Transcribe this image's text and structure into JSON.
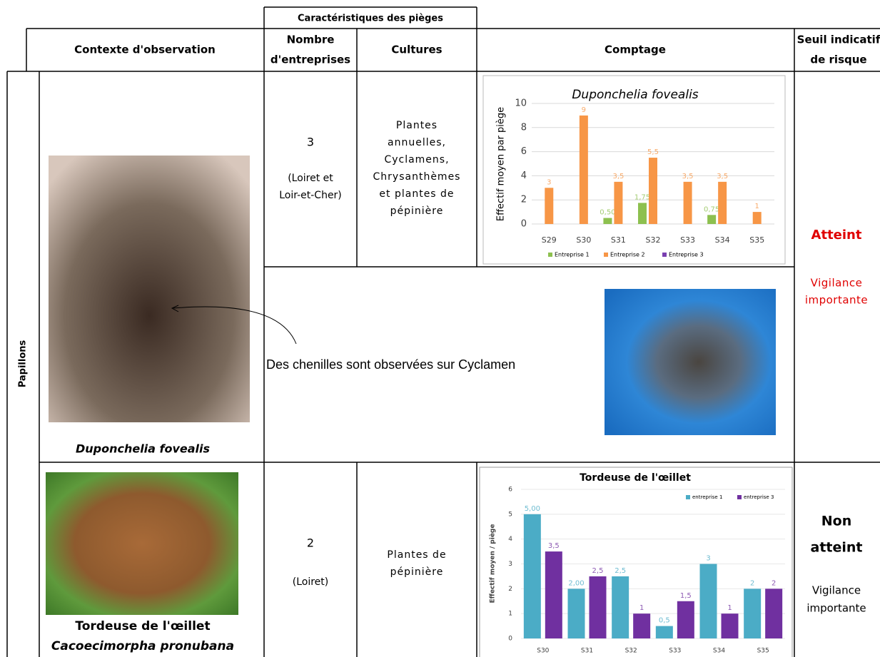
{
  "header": {
    "group": "Caractéristiques des pièges",
    "columns": [
      [
        "Contexte d'observation"
      ],
      [
        "Nombre",
        "d'entreprises"
      ],
      [
        "Cultures"
      ],
      [
        "Comptage"
      ],
      [
        "Seuil indicatif",
        "de risque"
      ]
    ]
  },
  "group_label": "Papillons",
  "rows": [
    {
      "caption": [
        "Duponchelia fovealis"
      ],
      "count": "3",
      "location": [
        "(Loiret et",
        "Loir-et-Cher)"
      ],
      "cultures": [
        "Plantes",
        "annuelles,",
        "Cyclamens,",
        "Chrysanthèmes",
        "et plantes de",
        "pépinière"
      ],
      "note": "Des chenilles sont observées sur Cyclamen",
      "risk": [
        "Atteint"
      ],
      "advice": [
        "Vigilance",
        "importante"
      ],
      "chart": {
        "type": "bar",
        "title": "Duponchelia fovealis",
        "y_label": "Effectif moyen par piège",
        "categories": [
          "S29",
          "S30",
          "S31",
          "S32",
          "S33",
          "S34",
          "S35"
        ],
        "series": [
          {
            "name": "Entreprise 1",
            "color": "#8dc04f",
            "values": [
              null,
              null,
              0.5,
              1.75,
              null,
              0.75,
              null
            ],
            "value_labels": [
              null,
              null,
              "0,50",
              "1,75",
              null,
              "0,75",
              null
            ]
          },
          {
            "name": "Entreprise 2",
            "color": "#f79646",
            "values": [
              3,
              9,
              3.5,
              5.5,
              3.5,
              3.5,
              1
            ],
            "value_labels": [
              "3",
              "9",
              "3,5",
              "5,5",
              "3,5",
              "3,5",
              "1"
            ]
          },
          {
            "name": "Entreprise 3",
            "color": "#7a3fb0",
            "values": [
              null,
              null,
              null,
              null,
              null,
              null,
              null
            ],
            "value_labels": [
              null,
              null,
              null,
              null,
              null,
              null,
              null
            ]
          }
        ],
        "ylim": [
          0,
          10
        ],
        "yticks": [
          0,
          2,
          4,
          6,
          8,
          10
        ],
        "grid": true
      }
    },
    {
      "caption": [
        "Tordeuse de l'œillet",
        "Cacoecimorpha pronubana"
      ],
      "count": "2",
      "location": [
        "(Loiret)"
      ],
      "cultures": [
        "Plantes de",
        "pépinière"
      ],
      "risk": [
        "Non",
        "atteint"
      ],
      "advice": [
        "Vigilance",
        "importante"
      ],
      "chart": {
        "type": "bar",
        "title": "Tordeuse de l'œillet",
        "y_label": "Effectif moyen / piège",
        "categories": [
          "S30",
          "S31",
          "S32",
          "S33",
          "S34",
          "S35"
        ],
        "series": [
          {
            "name": "entreprise 1",
            "color": "#4bacc6",
            "values": [
              5,
              2,
              2.5,
              0.5,
              3,
              2
            ],
            "value_labels": [
              "5,00",
              "2,00",
              "2,5",
              "0,5",
              "3",
              "2"
            ]
          },
          {
            "name": "entreprise 3",
            "color": "#7030a0",
            "values": [
              3.5,
              2.5,
              1,
              1.5,
              1,
              2
            ],
            "value_labels": [
              "3,5",
              "2,5",
              "1",
              "1,5",
              "1",
              "2"
            ]
          }
        ],
        "ylim": [
          0,
          6
        ],
        "yticks": [
          0,
          1,
          2,
          3,
          4,
          5,
          6
        ],
        "grid": true
      }
    }
  ]
}
